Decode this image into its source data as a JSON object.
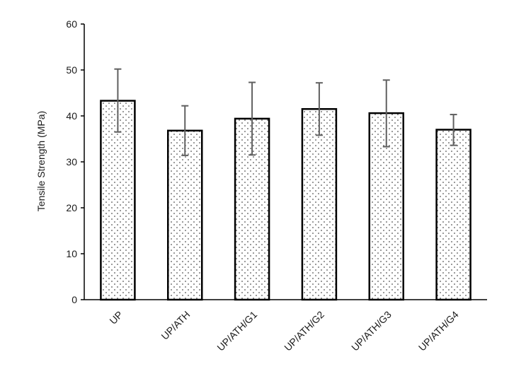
{
  "chart_data": {
    "type": "bar",
    "title": "",
    "xlabel": "",
    "ylabel": "Tensile Strength (MPa)",
    "ylim": [
      0,
      60
    ],
    "yticks": [
      0,
      10,
      20,
      30,
      40,
      50,
      60
    ],
    "grid": false,
    "legend": "none",
    "categories": [
      "UP",
      "UP/ATH",
      "UP/ATH/G1",
      "UP/ATH/G2",
      "UP/ATH/G3",
      "UP/ATH/G4"
    ],
    "values": [
      43.3,
      36.8,
      39.4,
      41.5,
      40.6,
      37.0
    ],
    "error_low": [
      36.5,
      31.4,
      31.5,
      35.8,
      33.3,
      33.6
    ],
    "error_high": [
      50.2,
      42.2,
      47.3,
      47.2,
      47.8,
      40.3
    ],
    "bar_fill": "#ffffff",
    "bar_pattern": "dotted",
    "bar_stroke": "#000000",
    "error_bar_color": "#606060",
    "axis_color": "#000000"
  }
}
